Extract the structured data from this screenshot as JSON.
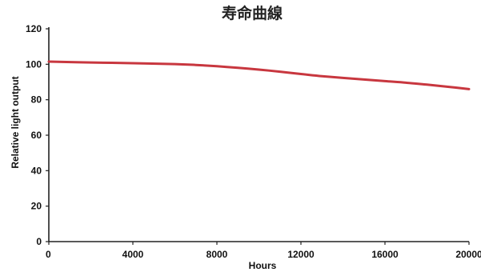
{
  "chart_data": {
    "type": "line",
    "title": "寿命曲線",
    "xlabel": "Hours",
    "ylabel": "Relative light output",
    "xlim": [
      0,
      20000
    ],
    "ylim": [
      0,
      120
    ],
    "x_ticks": [
      "0",
      "4000",
      "8000",
      "12000",
      "16000",
      "20000"
    ],
    "y_ticks": [
      "0",
      "20",
      "40",
      "60",
      "80",
      "100",
      "120"
    ],
    "grid": false,
    "legend": "none",
    "series": [
      {
        "color": "#c8373f",
        "x": [
          0,
          2000,
          4000,
          6000,
          7000,
          8000,
          9000,
          10000,
          11000,
          12000,
          13000,
          14000,
          15000,
          16000,
          17000,
          18000,
          19000,
          20000
        ],
        "y": [
          101.5,
          101,
          100.6,
          100.1,
          99.6,
          98.9,
          98.0,
          97.0,
          95.8,
          94.5,
          93.3,
          92.3,
          91.4,
          90.5,
          89.6,
          88.5,
          87.3,
          86
        ]
      }
    ]
  }
}
